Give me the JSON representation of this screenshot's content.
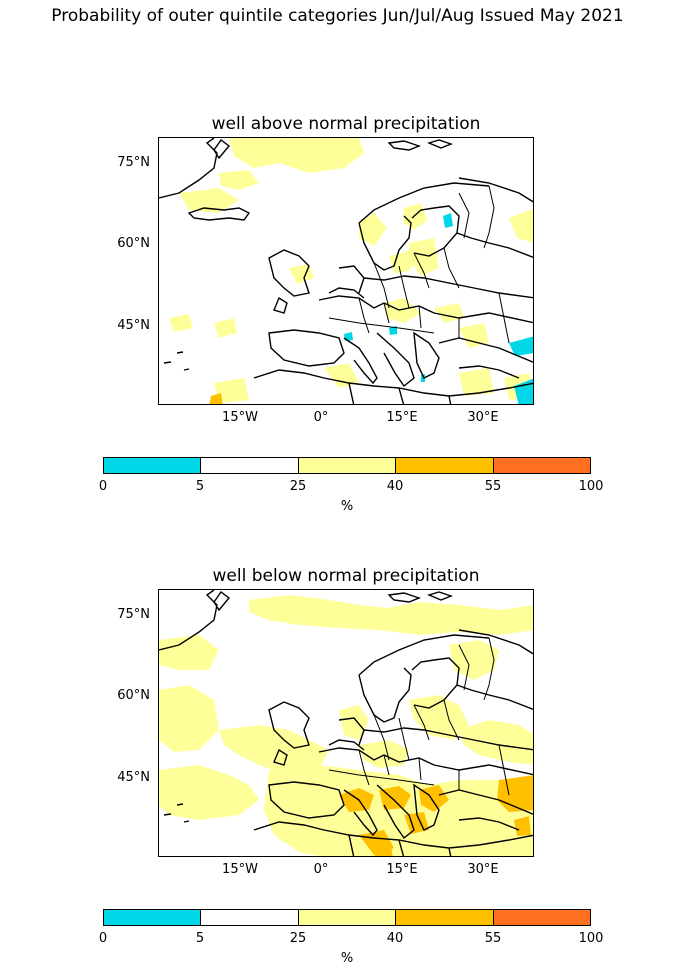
{
  "title": "Probability of outer quintile categories Jun/Jul/Aug Issued May 2021",
  "panels": [
    {
      "title": "well above normal precipitation",
      "lat_labels": [
        "75°N",
        "60°N",
        "45°N"
      ],
      "lon_labels": [
        "15°W",
        "0°",
        "15°E",
        "30°E"
      ],
      "colorbar": {
        "ticks": [
          "0",
          "5",
          "25",
          "40",
          "55",
          "100"
        ],
        "unit": "%",
        "colors": [
          "#00d8e8",
          "#ffffff",
          "#ffff99",
          "#ffc000",
          "#ff7020"
        ]
      }
    },
    {
      "title": "well below normal precipitation",
      "lat_labels": [
        "75°N",
        "60°N",
        "45°N"
      ],
      "lon_labels": [
        "15°W",
        "0°",
        "15°E",
        "30°E"
      ],
      "colorbar": {
        "ticks": [
          "0",
          "5",
          "25",
          "40",
          "55",
          "100"
        ],
        "unit": "%",
        "colors": [
          "#00d8e8",
          "#ffffff",
          "#ffff99",
          "#ffc000",
          "#ff7020"
        ]
      }
    }
  ]
}
